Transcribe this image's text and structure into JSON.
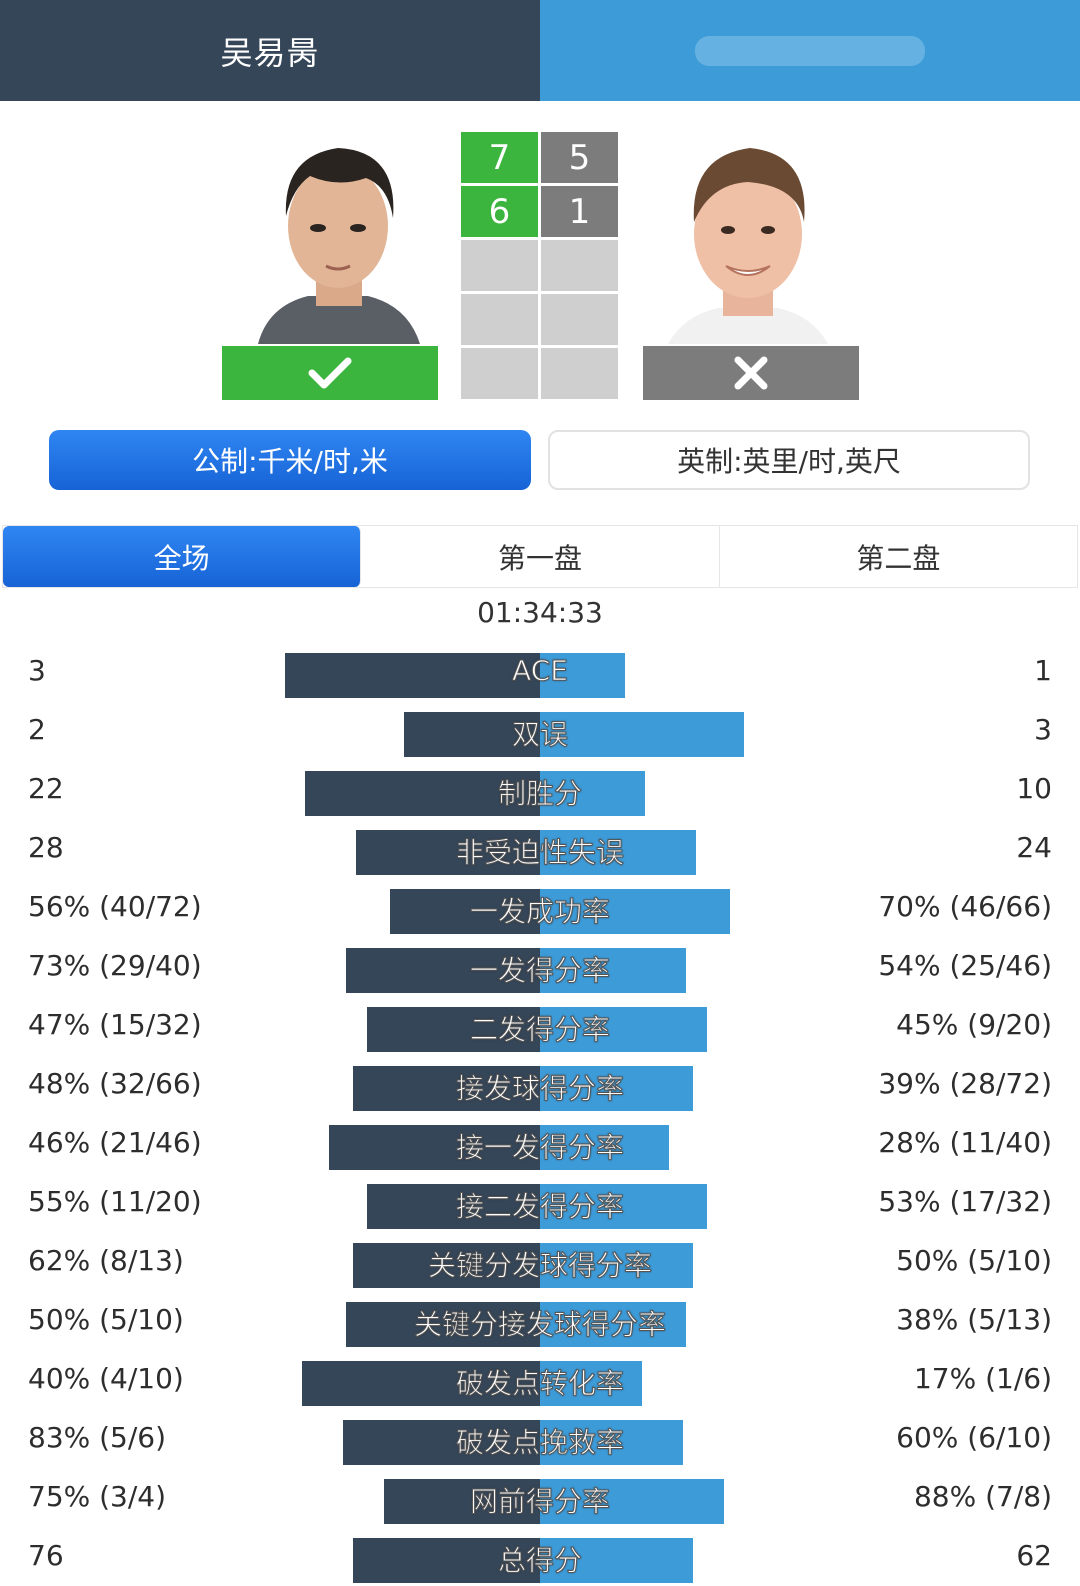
{
  "header": {
    "player_left_name": "吴易昺"
  },
  "score": {
    "sets": [
      {
        "left": "7",
        "right": "5"
      },
      {
        "left": "6",
        "right": "1"
      },
      {
        "left": "",
        "right": ""
      },
      {
        "left": "",
        "right": ""
      },
      {
        "left": "",
        "right": ""
      }
    ]
  },
  "units": {
    "metric": "公制:千米/时,米",
    "imperial": "英制:英里/时,英尺"
  },
  "tabs": [
    "全场",
    "第一盘",
    "第二盘"
  ],
  "duration": "01:34:33",
  "colors": {
    "left_player": "#354659",
    "right_player": "#3d9bd8",
    "win": "#3bb53d",
    "lose": "#7c7c7c",
    "active_tab": "#1f72e6"
  },
  "stats": [
    {
      "label": "ACE",
      "left": "3",
      "right": "1",
      "left_share": 0.75,
      "right_share": 0.25
    },
    {
      "label": "双误",
      "left": "2",
      "right": "3",
      "left_share": 0.4,
      "right_share": 0.6
    },
    {
      "label": "制胜分",
      "left": "22",
      "right": "10",
      "left_share": 0.69,
      "right_share": 0.31
    },
    {
      "label": "非受迫性失误",
      "left": "28",
      "right": "24",
      "left_share": 0.54,
      "right_share": 0.46
    },
    {
      "label": "一发成功率",
      "left": "56% (40/72)",
      "right": "70% (46/66)",
      "left_share": 0.44,
      "right_share": 0.56
    },
    {
      "label": "一发得分率",
      "left": "73% (29/40)",
      "right": "54% (25/46)",
      "left_share": 0.57,
      "right_share": 0.43
    },
    {
      "label": "二发得分率",
      "left": "47% (15/32)",
      "right": "45% (9/20)",
      "left_share": 0.51,
      "right_share": 0.49
    },
    {
      "label": "接发球得分率",
      "left": "48% (32/66)",
      "right": "39% (28/72)",
      "left_share": 0.55,
      "right_share": 0.45
    },
    {
      "label": "接一发得分率",
      "left": "46% (21/46)",
      "right": "28% (11/40)",
      "left_share": 0.62,
      "right_share": 0.38
    },
    {
      "label": "接二发得分率",
      "left": "55% (11/20)",
      "right": "53% (17/32)",
      "left_share": 0.51,
      "right_share": 0.49
    },
    {
      "label": "关键分发球得分率",
      "left": "62% (8/13)",
      "right": "50% (5/10)",
      "left_share": 0.55,
      "right_share": 0.45
    },
    {
      "label": "关键分接发球得分率",
      "left": "50% (5/10)",
      "right": "38% (5/13)",
      "left_share": 0.57,
      "right_share": 0.43
    },
    {
      "label": "破发点转化率",
      "left": "40% (4/10)",
      "right": "17% (1/6)",
      "left_share": 0.7,
      "right_share": 0.3
    },
    {
      "label": "破发点挽救率",
      "left": "83% (5/6)",
      "right": "60% (6/10)",
      "left_share": 0.58,
      "right_share": 0.42
    },
    {
      "label": "网前得分率",
      "left": "75% (3/4)",
      "right": "88% (7/8)",
      "left_share": 0.46,
      "right_share": 0.54
    },
    {
      "label": "总得分",
      "left": "76",
      "right": "62",
      "left_share": 0.55,
      "right_share": 0.45
    }
  ]
}
